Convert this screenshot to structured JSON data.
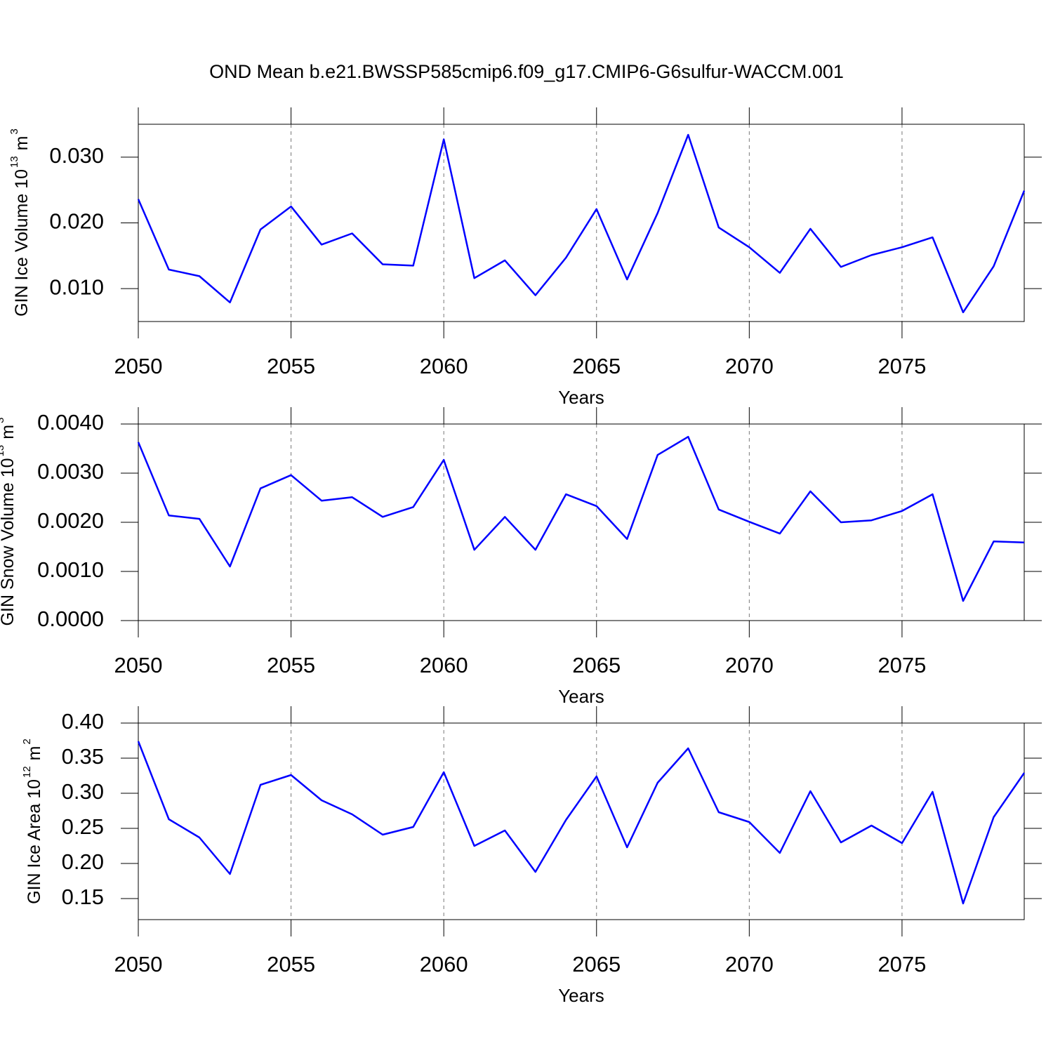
{
  "title": "OND Mean b.e21.BWSSP585cmip6.f09_g17.CMIP6-G6sulfur-WACCM.001",
  "chart_data": [
    {
      "type": "line",
      "xlabel": "Years",
      "ylabel": [
        "GIN Ice Volume 10",
        "13",
        "m",
        "3"
      ],
      "color": "#0000ff",
      "x": [
        2050,
        2051,
        2052,
        2053,
        2054,
        2055,
        2056,
        2057,
        2058,
        2059,
        2060,
        2061,
        2062,
        2063,
        2064,
        2065,
        2066,
        2067,
        2068,
        2069,
        2070,
        2071,
        2072,
        2073,
        2074,
        2075,
        2076,
        2077,
        2078,
        2079
      ],
      "values": [
        0.0236,
        0.0129,
        0.0119,
        0.0079,
        0.019,
        0.0225,
        0.0167,
        0.0184,
        0.0137,
        0.0135,
        0.0327,
        0.0116,
        0.0143,
        0.009,
        0.0147,
        0.0221,
        0.0114,
        0.0215,
        0.0334,
        0.0193,
        0.0163,
        0.0124,
        0.0191,
        0.0133,
        0.0151,
        0.0163,
        0.0178,
        0.0064,
        0.0134,
        0.0249
      ],
      "xlim": [
        2050,
        2079
      ],
      "xticks": [
        2050,
        2055,
        2060,
        2065,
        2070,
        2075
      ],
      "ylim": [
        0.005,
        0.035
      ],
      "yticks": [
        {
          "value": 0.01,
          "label": "0.010"
        },
        {
          "value": 0.02,
          "label": "0.020"
        },
        {
          "value": 0.03,
          "label": "0.030"
        }
      ],
      "grid": true
    },
    {
      "type": "line",
      "xlabel": "Years",
      "ylabel": [
        "GIN Snow Volume 10",
        "13",
        "m",
        "3"
      ],
      "color": "#0000ff",
      "x": [
        2050,
        2051,
        2052,
        2053,
        2054,
        2055,
        2056,
        2057,
        2058,
        2059,
        2060,
        2061,
        2062,
        2063,
        2064,
        2065,
        2066,
        2067,
        2068,
        2069,
        2070,
        2071,
        2072,
        2073,
        2074,
        2075,
        2076,
        2077,
        2078,
        2079
      ],
      "values": [
        0.00363,
        0.00214,
        0.00207,
        0.0011,
        0.00269,
        0.00296,
        0.00244,
        0.00251,
        0.00211,
        0.00231,
        0.00327,
        0.00144,
        0.00211,
        0.00144,
        0.00257,
        0.00233,
        0.00166,
        0.00337,
        0.00374,
        0.00226,
        0.00201,
        0.00177,
        0.00263,
        0.002,
        0.00204,
        0.00223,
        0.00257,
        0.0004,
        0.00161,
        0.00159
      ],
      "xlim": [
        2050,
        2079
      ],
      "xticks": [
        2050,
        2055,
        2060,
        2065,
        2070,
        2075
      ],
      "ylim": [
        0,
        0.004
      ],
      "yticks": [
        {
          "value": 0,
          "label": "0.0000"
        },
        {
          "value": 0.001,
          "label": "0.0010"
        },
        {
          "value": 0.002,
          "label": "0.0020"
        },
        {
          "value": 0.003,
          "label": "0.0030"
        },
        {
          "value": 0.004,
          "label": "0.0040"
        }
      ],
      "grid": true
    },
    {
      "type": "line",
      "xlabel": "Years",
      "ylabel": [
        "GIN Ice Area 10",
        "12",
        "m",
        "2"
      ],
      "color": "#0000ff",
      "x": [
        2050,
        2051,
        2052,
        2053,
        2054,
        2055,
        2056,
        2057,
        2058,
        2059,
        2060,
        2061,
        2062,
        2063,
        2064,
        2065,
        2066,
        2067,
        2068,
        2069,
        2070,
        2071,
        2072,
        2073,
        2074,
        2075,
        2076,
        2077,
        2078,
        2079
      ],
      "values": [
        0.374,
        0.263,
        0.237,
        0.185,
        0.312,
        0.326,
        0.29,
        0.27,
        0.241,
        0.252,
        0.33,
        0.225,
        0.247,
        0.188,
        0.262,
        0.324,
        0.223,
        0.315,
        0.364,
        0.273,
        0.259,
        0.215,
        0.303,
        0.23,
        0.254,
        0.229,
        0.302,
        0.143,
        0.266,
        0.329
      ],
      "xlim": [
        2050,
        2079
      ],
      "xticks": [
        2050,
        2055,
        2060,
        2065,
        2070,
        2075
      ],
      "ylim": [
        0.12,
        0.4
      ],
      "yticks": [
        0.15,
        {
          "value": 0.2,
          "label": "0.20"
        },
        0.25,
        {
          "value": 0.3,
          "label": "0.30"
        },
        0.35,
        {
          "value": 0.4,
          "label": "0.40"
        }
      ],
      "grid": true
    }
  ]
}
